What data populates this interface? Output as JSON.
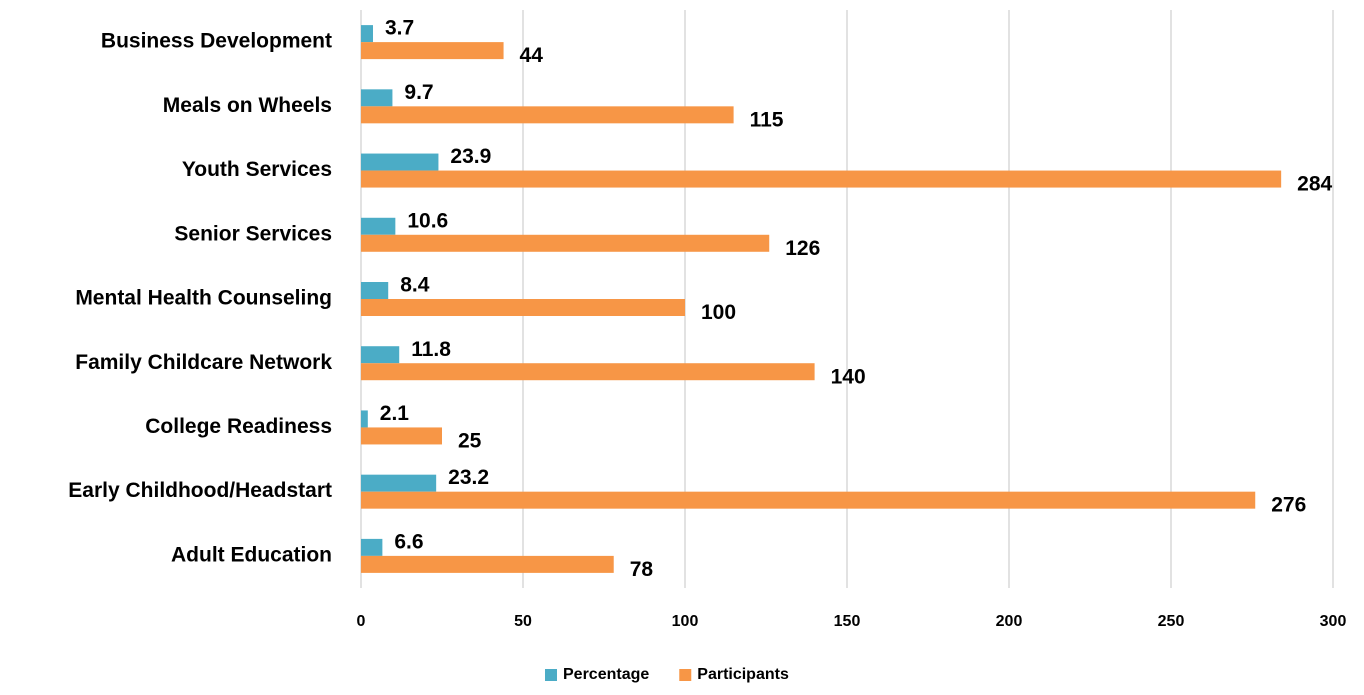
{
  "chart_data": {
    "type": "bar",
    "orientation": "horizontal",
    "categories": [
      "Business Development",
      "Meals on Wheels",
      "Youth Services",
      "Senior Services",
      "Mental Health Counseling",
      "Family Childcare Network",
      "College Readiness",
      "Early Childhood/Headstart",
      "Adult Education"
    ],
    "series": [
      {
        "name": "Percentage",
        "color": "#4bacc6",
        "values": [
          3.7,
          9.7,
          23.9,
          10.6,
          8.4,
          11.8,
          2.1,
          23.2,
          6.6
        ]
      },
      {
        "name": "Participants",
        "color": "#f79646",
        "values": [
          44,
          115,
          284,
          126,
          100,
          140,
          25,
          276,
          78
        ]
      }
    ],
    "xlim": [
      0,
      300
    ],
    "xticks": [
      0,
      50,
      100,
      150,
      200,
      250,
      300
    ],
    "grid": true,
    "legend": "bottom"
  }
}
